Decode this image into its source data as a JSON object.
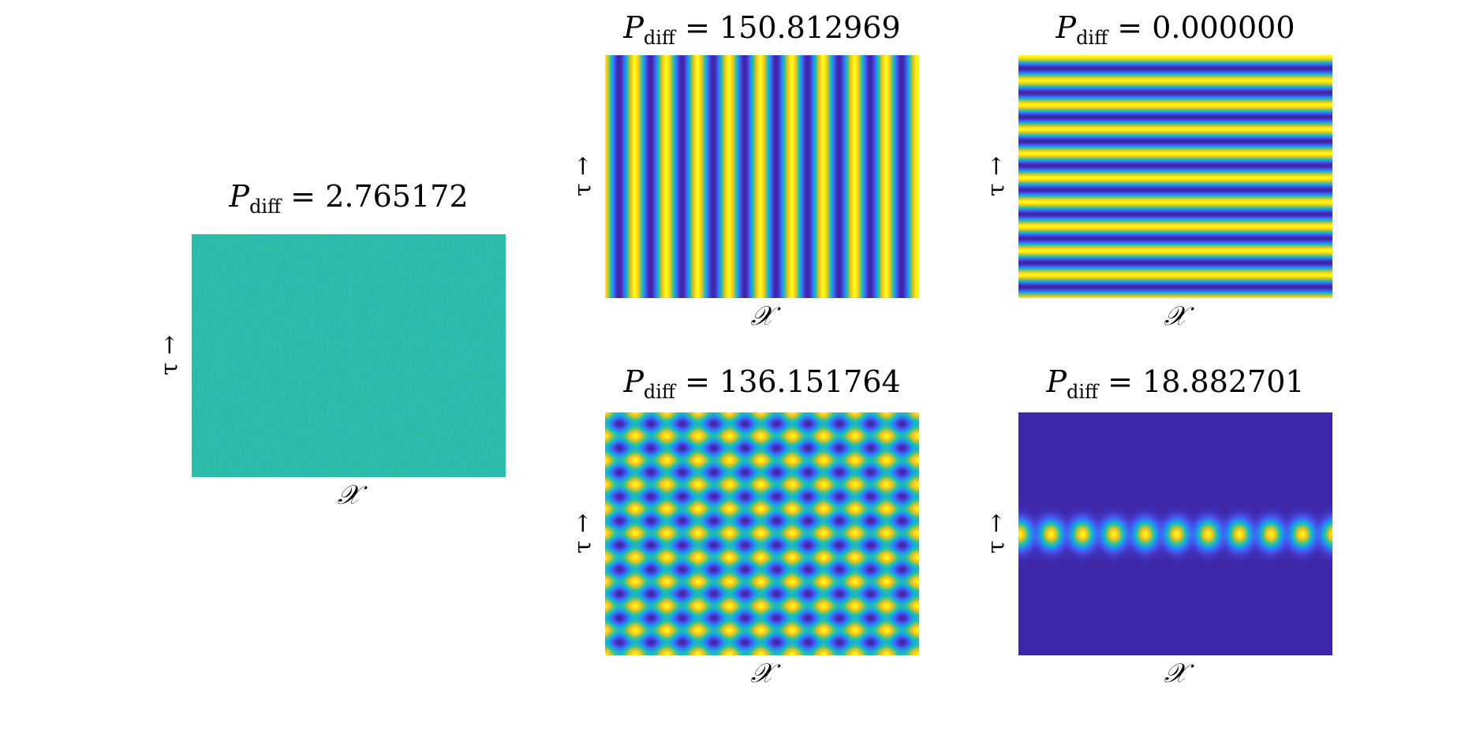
{
  "chart_data": [
    {
      "type": "heatmap",
      "pattern": "uniform-noise",
      "title_symbol": "P",
      "title_subscript": "diff",
      "title_equals": "=",
      "title_value": "2.765172",
      "xlabel": "𝒳",
      "ylabel": "τ →",
      "colormap": "parula"
    },
    {
      "type": "heatmap",
      "pattern": "vertical-stripes",
      "title_symbol": "P",
      "title_subscript": "diff",
      "title_equals": "=",
      "title_value": "150.812969",
      "xlabel": "𝒳",
      "ylabel": "τ →",
      "colormap": "parula"
    },
    {
      "type": "heatmap",
      "pattern": "horizontal-stripes",
      "title_symbol": "P",
      "title_subscript": "diff",
      "title_equals": "=",
      "title_value": "0.000000",
      "xlabel": "𝒳",
      "ylabel": "τ →",
      "colormap": "parula"
    },
    {
      "type": "heatmap",
      "pattern": "checkerboard",
      "title_symbol": "P",
      "title_subscript": "diff",
      "title_equals": "=",
      "title_value": "136.151764",
      "xlabel": "𝒳",
      "ylabel": "τ →",
      "colormap": "parula"
    },
    {
      "type": "heatmap",
      "pattern": "localized-band",
      "title_symbol": "P",
      "title_subscript": "diff",
      "title_equals": "=",
      "title_value": "18.882701",
      "xlabel": "𝒳",
      "ylabel": "τ →",
      "colormap": "parula"
    }
  ]
}
